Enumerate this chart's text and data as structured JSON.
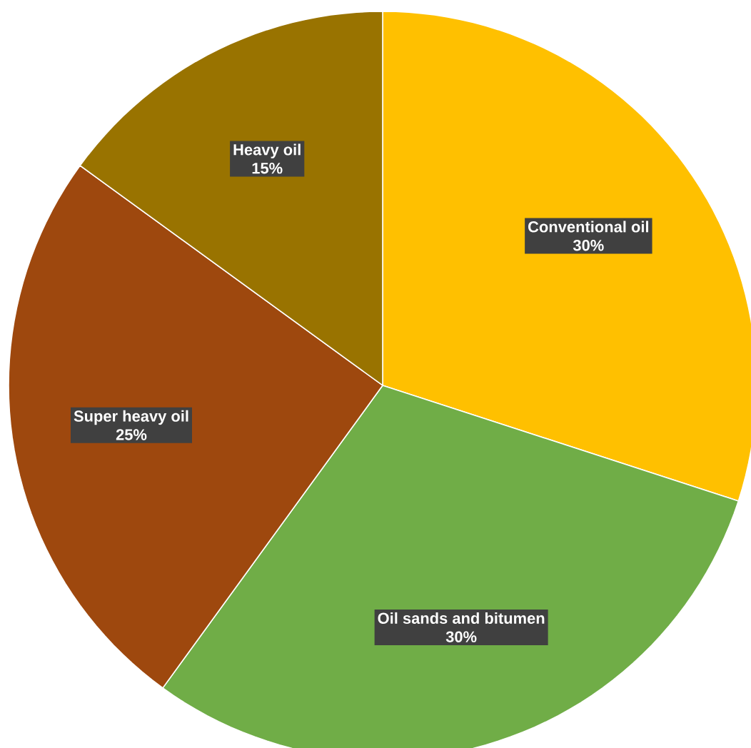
{
  "chart_data": {
    "type": "pie",
    "categories": [
      "Conventional oil",
      "Oil sands and bitumen",
      "Super heavy oil",
      "Heavy oil"
    ],
    "values": [
      30,
      30,
      25,
      15
    ],
    "colors": [
      "#ffc000",
      "#70ad47",
      "#9e480e",
      "#997300"
    ],
    "data_labels": true,
    "value_labels": [
      "30%",
      "30%",
      "25%",
      "15%"
    ]
  }
}
